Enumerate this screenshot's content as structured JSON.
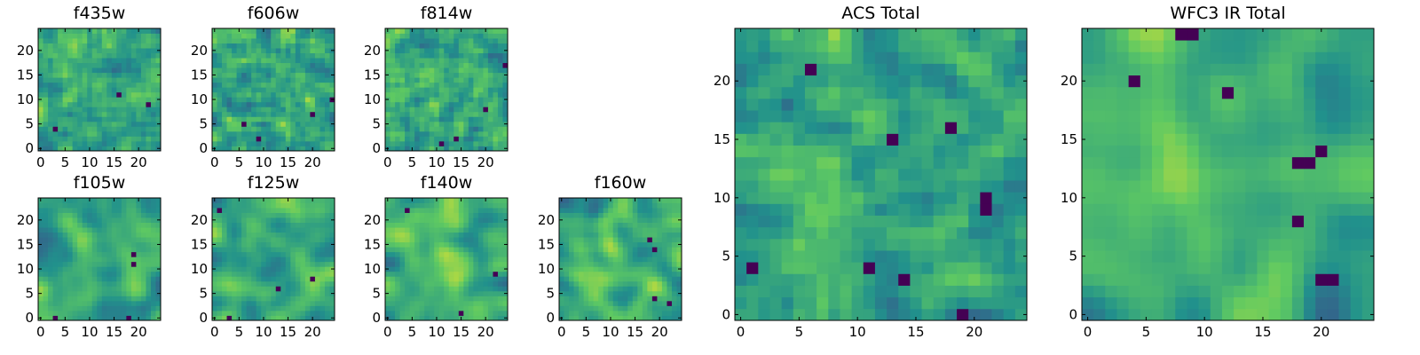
{
  "figure": {
    "colormap": "viridis",
    "colormap_stops": [
      "#440154",
      "#3b528b",
      "#21918c",
      "#5ec962",
      "#fde725"
    ],
    "axes_frame_color": "#000000",
    "background": "#ffffff"
  },
  "chart_data": [
    {
      "type": "heatmap",
      "id": "f435w",
      "title": "f435w",
      "grid_size": [
        25,
        25
      ],
      "xlim": [
        -0.5,
        24.5
      ],
      "ylim": [
        -0.5,
        24.5
      ],
      "xticks": [
        0,
        5,
        10,
        15,
        20
      ],
      "yticks": [
        0,
        5,
        10,
        15,
        20
      ],
      "origin": "lower",
      "value_character": "fine-grained noise, mostly green-yellow, scattered dark blue pixels",
      "seed": 11,
      "smooth": 0.15,
      "dark_spots": [
        [
          16,
          11
        ],
        [
          3,
          4
        ],
        [
          22,
          9
        ]
      ]
    },
    {
      "type": "heatmap",
      "id": "f606w",
      "title": "f606w",
      "grid_size": [
        25,
        25
      ],
      "xlim": [
        -0.5,
        24.5
      ],
      "ylim": [
        -0.5,
        24.5
      ],
      "xticks": [
        0,
        5,
        10,
        15,
        20
      ],
      "yticks": [
        0,
        5,
        10,
        15,
        20
      ],
      "origin": "lower",
      "value_character": "noisy with slight central brightening",
      "seed": 23,
      "smooth": 0.25,
      "dark_spots": [
        [
          6,
          5
        ],
        [
          20,
          7
        ],
        [
          9,
          2
        ],
        [
          24,
          10
        ]
      ]
    },
    {
      "type": "heatmap",
      "id": "f814w",
      "title": "f814w",
      "grid_size": [
        25,
        25
      ],
      "xlim": [
        -0.5,
        24.5
      ],
      "ylim": [
        -0.5,
        24.5
      ],
      "xticks": [
        0,
        5,
        10,
        15,
        20
      ],
      "yticks": [
        0,
        5,
        10,
        15,
        20
      ],
      "origin": "lower",
      "value_character": "noisy with central yellow cluster",
      "seed": 37,
      "smooth": 0.3,
      "dark_spots": [
        [
          14,
          2
        ],
        [
          11,
          1
        ],
        [
          20,
          8
        ],
        [
          24,
          17
        ]
      ]
    },
    {
      "type": "heatmap",
      "id": "f105w",
      "title": "f105w",
      "grid_size": [
        25,
        25
      ],
      "xlim": [
        -0.5,
        24.5
      ],
      "ylim": [
        -0.5,
        24.5
      ],
      "xticks": [
        0,
        5,
        10,
        15,
        20
      ],
      "yticks": [
        0,
        5,
        10,
        15,
        20
      ],
      "origin": "lower",
      "value_character": "smooth, bright yellow centre, dark spots near (19,13)",
      "seed": 51,
      "smooth": 0.65,
      "dark_spots": [
        [
          19,
          13
        ],
        [
          19,
          11
        ],
        [
          18,
          0
        ],
        [
          3,
          0
        ]
      ]
    },
    {
      "type": "heatmap",
      "id": "f125w",
      "title": "f125w",
      "grid_size": [
        25,
        25
      ],
      "xlim": [
        -0.5,
        24.5
      ],
      "ylim": [
        -0.5,
        24.5
      ],
      "xticks": [
        0,
        5,
        10,
        15,
        20
      ],
      "yticks": [
        0,
        5,
        10,
        15,
        20
      ],
      "origin": "lower",
      "value_character": "smooth, bright centre with a few dark pixels",
      "seed": 63,
      "smooth": 0.65,
      "dark_spots": [
        [
          13,
          6
        ],
        [
          20,
          8
        ],
        [
          3,
          0
        ],
        [
          1,
          22
        ]
      ]
    },
    {
      "type": "heatmap",
      "id": "f140w",
      "title": "f140w",
      "grid_size": [
        25,
        25
      ],
      "xlim": [
        -0.5,
        24.5
      ],
      "ylim": [
        -0.5,
        24.5
      ],
      "xticks": [
        0,
        5,
        10,
        15,
        20
      ],
      "yticks": [
        0,
        5,
        10,
        15,
        20
      ],
      "origin": "lower",
      "value_character": "smooth, bright yellow centre, dark pixels near bottom",
      "seed": 77,
      "smooth": 0.65,
      "dark_spots": [
        [
          15,
          1
        ],
        [
          4,
          22
        ],
        [
          22,
          9
        ]
      ]
    },
    {
      "type": "heatmap",
      "id": "f160w",
      "title": "f160w",
      "grid_size": [
        25,
        25
      ],
      "xlim": [
        -0.5,
        24.5
      ],
      "ylim": [
        -0.5,
        24.5
      ],
      "xticks": [
        0,
        5,
        10,
        15,
        20
      ],
      "yticks": [
        0,
        5,
        10,
        15,
        20
      ],
      "origin": "lower",
      "value_character": "smooth, bright yellow core at centre",
      "seed": 89,
      "smooth": 0.7,
      "dark_spots": [
        [
          18,
          16
        ],
        [
          19,
          14
        ],
        [
          19,
          4
        ],
        [
          22,
          3
        ]
      ]
    },
    {
      "type": "heatmap",
      "id": "acs-total",
      "title": "ACS Total",
      "grid_size": [
        25,
        25
      ],
      "xlim": [
        -0.5,
        24.5
      ],
      "ylim": [
        -0.5,
        24.5
      ],
      "xticks": [
        0,
        5,
        10,
        15,
        20
      ],
      "yticks": [
        0,
        5,
        10,
        15,
        20
      ],
      "origin": "lower",
      "value_character": "noisy green-yellow field with scattered dark purple pixels",
      "seed": 101,
      "smooth": 0.3,
      "dark_spots": [
        [
          6,
          21
        ],
        [
          13,
          15
        ],
        [
          18,
          16
        ],
        [
          21,
          9
        ],
        [
          21,
          10
        ],
        [
          11,
          4
        ],
        [
          14,
          3
        ],
        [
          19,
          0
        ],
        [
          1,
          4
        ]
      ]
    },
    {
      "type": "heatmap",
      "id": "wfc3-ir-total",
      "title": "WFC3 IR Total",
      "grid_size": [
        25,
        25
      ],
      "xlim": [
        -0.5,
        24.5
      ],
      "ylim": [
        -0.5,
        24.5
      ],
      "xticks": [
        0,
        5,
        10,
        15,
        20
      ],
      "yticks": [
        0,
        5,
        10,
        15,
        20
      ],
      "origin": "lower",
      "value_character": "smooth with bright yellow core near (12,12) and dark clusters",
      "seed": 131,
      "smooth": 0.72,
      "dark_spots": [
        [
          8,
          24
        ],
        [
          9,
          24
        ],
        [
          4,
          20
        ],
        [
          12,
          19
        ],
        [
          18,
          13
        ],
        [
          19,
          13
        ],
        [
          20,
          14
        ],
        [
          18,
          8
        ],
        [
          20,
          3
        ],
        [
          21,
          3
        ]
      ]
    }
  ]
}
